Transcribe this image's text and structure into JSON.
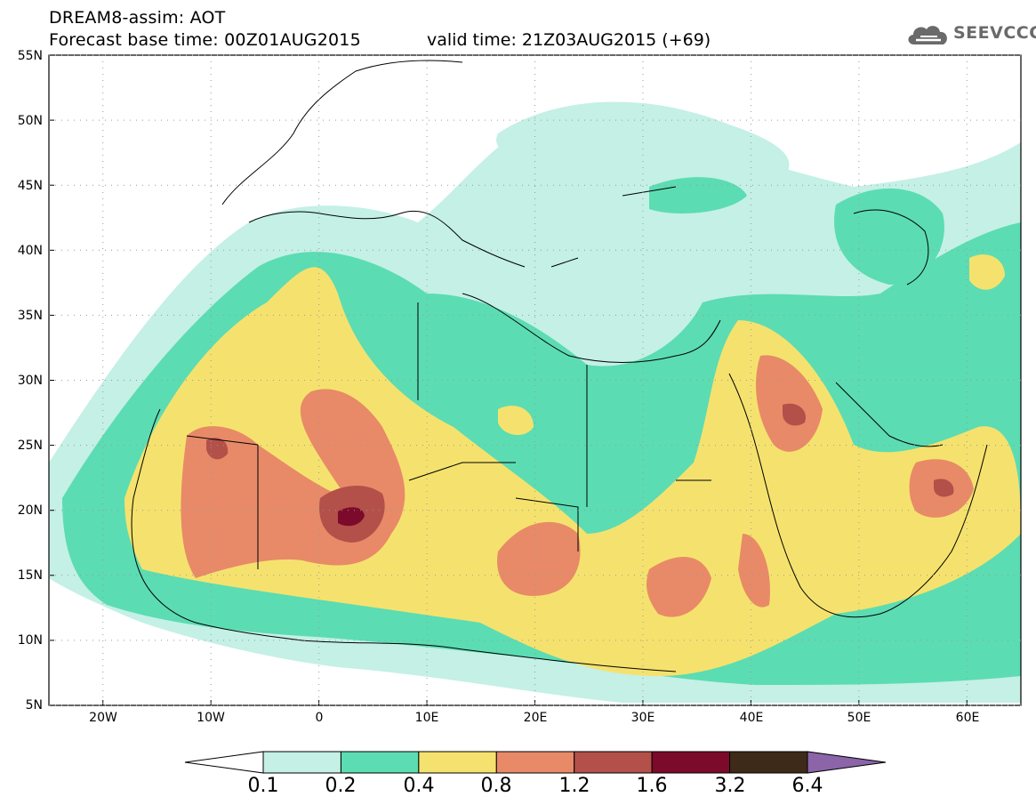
{
  "header": {
    "title": "DREAM8-assim: AOT",
    "base_time": "Forecast base time: 00Z01AUG2015",
    "valid_time": "valid time: 21Z03AUG2015 (+69)",
    "logo_text": "SEEVCCC"
  },
  "map": {
    "lat_labels": [
      "55N",
      "50N",
      "45N",
      "40N",
      "35N",
      "30N",
      "25N",
      "20N",
      "15N",
      "10N",
      "5N"
    ],
    "lon_labels": [
      "20W",
      "10W",
      "0",
      "10E",
      "20E",
      "30E",
      "40E",
      "50E",
      "60E"
    ],
    "lat_range": [
      5,
      55
    ],
    "lon_range": [
      -25,
      65
    ]
  },
  "colorbar": {
    "levels": [
      "0.1",
      "0.2",
      "0.4",
      "0.8",
      "1.2",
      "1.6",
      "3.2",
      "6.4"
    ],
    "colors": [
      "#ffffff",
      "#c4f0e6",
      "#5cdcb2",
      "#f5e26e",
      "#e88a67",
      "#b4504a",
      "#7c0a2a",
      "#3e2a18",
      "#8c64a8"
    ]
  }
}
